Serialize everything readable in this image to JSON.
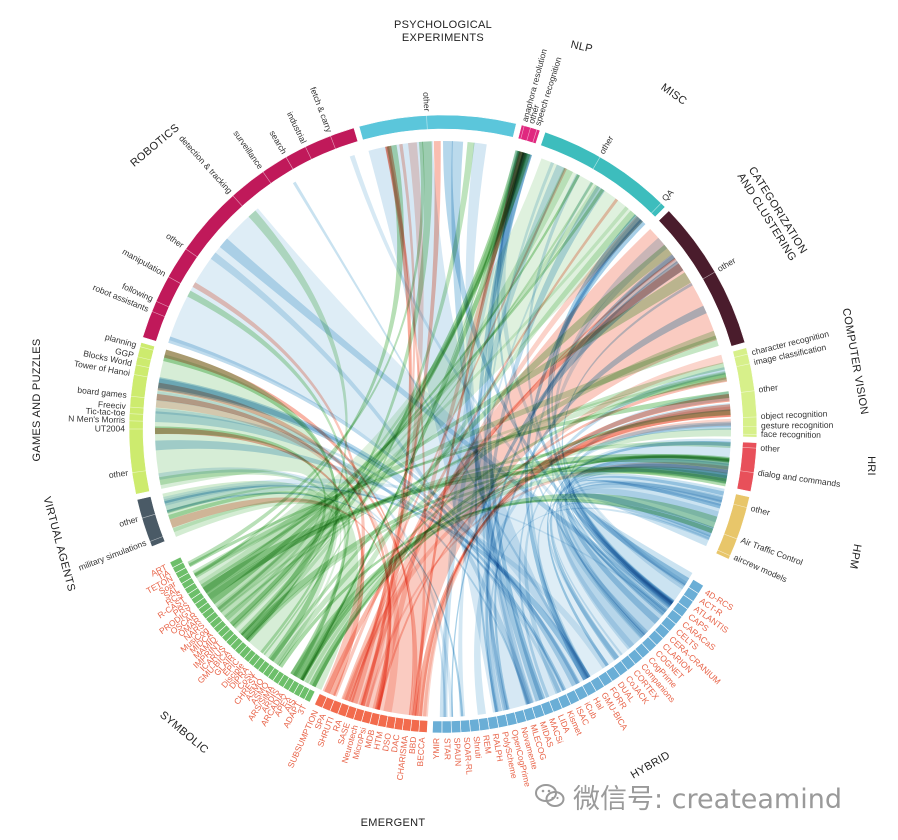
{
  "colors": {
    "symbolic": "#6dbf6a",
    "emergent": "#f26b4d",
    "hybrid": "#6aaed6",
    "arch_text": "#e8654a",
    "psych": "#5bc6db",
    "nlp": "#e0287f",
    "misc": "#3dbdbd",
    "categorization": "#4a1c2c",
    "computer_vision": "#d7f08a",
    "hri": "#e8505a",
    "hpm": "#e8c66a",
    "virtual": "#4a5a66",
    "games": "#cdeb6e",
    "robotics": "#c0195a"
  },
  "categories": [
    {
      "name": "PSYCHOLOGICAL EXPERIMENTS",
      "color": "#5bc6db",
      "start": -15.5,
      "end": 13.5,
      "subs": [
        {
          "label": "other",
          "a": -3
        }
      ]
    },
    {
      "name": "NLP",
      "color": "#e0287f",
      "start": 14.5,
      "end": 18.0,
      "subs": [
        {
          "label": "anaphora resolution",
          "a": 15.0
        },
        {
          "label": "other",
          "a": 16.2
        },
        {
          "label": "speech recognition",
          "a": 17.4
        }
      ]
    },
    {
      "name": "MISC",
      "color": "#3dbdbd",
      "start": 19.0,
      "end": 45.0,
      "subs": [
        {
          "label": "other",
          "a": 30
        },
        {
          "label": "QA",
          "a": 44
        }
      ]
    },
    {
      "name": "CATEGORIZATION AND CLUSTERING",
      "color": "#4a1c2c",
      "start": 46.0,
      "end": 74.0,
      "subs": [
        {
          "label": "other",
          "a": 60
        }
      ]
    },
    {
      "name": "COMPUTER VISION",
      "color": "#d7f08a",
      "start": 75.0,
      "end": 91.5,
      "subs": [
        {
          "label": "character recognition",
          "a": 76.2
        },
        {
          "label": "image classification",
          "a": 78.0
        },
        {
          "label": "other",
          "a": 83
        },
        {
          "label": "object recognition",
          "a": 87.8
        },
        {
          "label": "gesture recognition",
          "a": 89.5
        },
        {
          "label": "face recognition",
          "a": 91
        }
      ]
    },
    {
      "name": "HRI",
      "color": "#e8505a",
      "start": 92.5,
      "end": 101.5,
      "subs": [
        {
          "label": "other",
          "a": 93.5
        },
        {
          "label": "dialog and commands",
          "a": 98
        }
      ]
    },
    {
      "name": "HPM",
      "color": "#e8c66a",
      "start": 102.5,
      "end": 114.5,
      "subs": [
        {
          "label": "other",
          "a": 104.5
        },
        {
          "label": "Air Traffic Control",
          "a": 110.5
        },
        {
          "label": "aircrew models",
          "a": 113.8
        }
      ]
    },
    {
      "name": "VIRTUAL AGENTS",
      "color": "#4a5a66",
      "start": 248.0,
      "end": 257.0,
      "subs": [
        {
          "label": "military simulations",
          "a": 249
        },
        {
          "label": "other",
          "a": 253.5
        }
      ]
    },
    {
      "name": "GAMES AND PUZZLES",
      "color": "#cdeb6e",
      "start": 258.0,
      "end": 286.0,
      "subs": [
        {
          "label": "other",
          "a": 262
        },
        {
          "label": "UT2004",
          "a": 270
        },
        {
          "label": "N Men's Morris",
          "a": 271.5
        },
        {
          "label": "Tic-tac-toe",
          "a": 272.8
        },
        {
          "label": "Freeciv",
          "a": 274.0
        },
        {
          "label": "board games",
          "a": 276
        },
        {
          "label": "Tower of Hanoi",
          "a": 280
        },
        {
          "label": "Blocks World",
          "a": 281.8
        },
        {
          "label": "GGP",
          "a": 283.3
        },
        {
          "label": "planning",
          "a": 285.2
        }
      ]
    },
    {
      "name": "ROBOTICS",
      "color": "#c0195a",
      "start": 287.0,
      "end": 343.5,
      "subs": [
        {
          "label": "robot assistants",
          "a": 292
        },
        {
          "label": "following",
          "a": 294
        },
        {
          "label": "manipulation",
          "a": 299
        },
        {
          "label": "other",
          "a": 305
        },
        {
          "label": "detection & tracking",
          "a": 318
        },
        {
          "label": "surveillance",
          "a": 325
        },
        {
          "label": "search",
          "a": 330
        },
        {
          "label": "industrial",
          "a": 334
        },
        {
          "label": "fetch & carry",
          "a": 339
        }
      ]
    }
  ],
  "groups": [
    {
      "name": "SYMBOLIC",
      "key": "symbolic",
      "start": 206.0,
      "end": 244.0
    },
    {
      "name": "EMERGENT",
      "key": "emergent",
      "start": 183.0,
      "end": 205.0
    },
    {
      "name": "HYBRID",
      "key": "hybrid",
      "start": 121.0,
      "end": 182.0
    }
  ],
  "architectures": {
    "symbolic": [
      "3T",
      "ADAPT",
      "AIS",
      "APEX",
      "ARCADIA",
      "ARDIS",
      "ARS/SiMA",
      "ASMO",
      "ASMO",
      "CHREST",
      "CoSy",
      "DiPRA",
      "Disciple",
      "EPIC",
      "GLAIR",
      "GMU-BICA",
      "ICARUS",
      "IMPRINT",
      "MAMID",
      "MIDCA",
      "MusiCog",
      "NARS",
      "OMAR",
      "OSCAR",
      "PRODIGY",
      "PRS",
      "R-CAST",
      "RCS",
      "SAL",
      "Soar",
      "TETON",
      "TiA",
      "ART"
    ],
    "emergent": [
      "BECCA",
      "BBD",
      "CHARISMA",
      "DAC",
      "DSO",
      "HTM",
      "MDB",
      "MicroPsi",
      "Neurotech",
      "SASE",
      "RA",
      "SHRUTI",
      "SPA",
      "SUBSUMPTION"
    ],
    "hybrid": [
      "4D-RCS",
      "ACT-R",
      "ATLANTIS",
      "CAPS",
      "CARACaS",
      "CELTS",
      "CERA-CRANIUM",
      "CLARION",
      "COGNET",
      "CogPrime",
      "Companions",
      "CORTEX",
      "CoJACK",
      "DUAL",
      "FORR",
      "GMU-BICA",
      "Hal",
      "iCub",
      "ISAC",
      "Kismet",
      "LIDA",
      "MACSi",
      "MIDAS",
      "MLECOG",
      "Novamente",
      "OpenCogPrime",
      "PolyScheme",
      "RALPH",
      "REM",
      "Shruti",
      "SOAR-RL",
      "SPAUN",
      "STAR",
      "YMIR"
    ]
  },
  "watermark": {
    "text": "微信号: createamind"
  }
}
